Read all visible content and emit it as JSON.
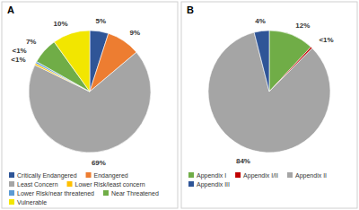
{
  "chart_data": [
    {
      "type": "pie",
      "title": "A",
      "categories": [
        "Critically Endangered",
        "Endangered",
        "Least Concern",
        "Lower Risk/least concern",
        "Lower Risk/near threatened",
        "Near Threatened",
        "Vulnerable"
      ],
      "values": [
        5,
        9,
        69,
        0.5,
        0.5,
        7,
        10
      ],
      "value_labels": [
        "5%",
        "9%",
        "69%",
        "<1%",
        "<1%",
        "7%",
        "10%"
      ],
      "colors": [
        "#2f5597",
        "#ed7d31",
        "#a5a5a5",
        "#ffc000",
        "#5b9bd5",
        "#70ad47",
        "#f2e600"
      ],
      "data_labels": true,
      "legend": "bottom"
    },
    {
      "type": "pie",
      "title": "B",
      "categories": [
        "Appendix I",
        "Appendix I/II",
        "Appendix II",
        "Appendix III"
      ],
      "values": [
        12,
        0.5,
        84,
        4
      ],
      "value_labels": [
        "12%",
        "<1%",
        "84%",
        "4%"
      ],
      "colors": [
        "#70ad47",
        "#c00000",
        "#a5a5a5",
        "#2f5597"
      ],
      "data_labels": true,
      "legend": "bottom"
    }
  ]
}
